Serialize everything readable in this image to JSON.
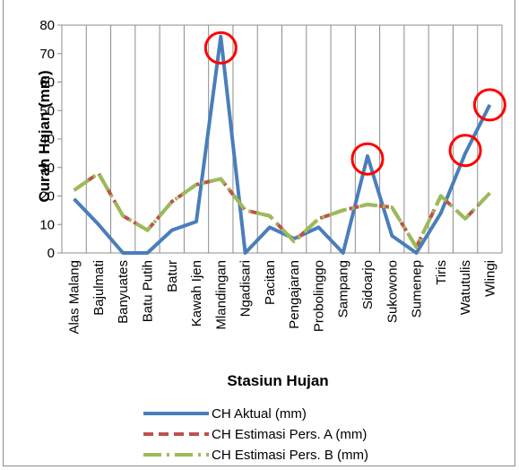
{
  "chart_data": {
    "type": "line",
    "title": "",
    "xlabel": "Stasiun Hujan",
    "ylabel": "Curah Hujan (mm)",
    "ylim": [
      0,
      80
    ],
    "yticks": [
      0,
      10,
      20,
      30,
      40,
      50,
      60,
      70,
      80
    ],
    "grid": "vertical",
    "legend_position": "bottom",
    "categories": [
      "Alas Malang",
      "Bajulmati",
      "Banyuates",
      "Batu Putih",
      "Batur",
      "Kawah Ijen",
      "Mlandingan",
      "Ngadisari",
      "Pacitan",
      "Pengajaran",
      "Probolinggo",
      "Sampang",
      "Sidoarjo",
      "Sukowono",
      "Sumenep",
      "Tiris",
      "Watutulis",
      "Wlingi"
    ],
    "series": [
      {
        "name": "CH Aktual (mm)",
        "color": "#4a7ebb",
        "dash": "solid",
        "values": [
          19,
          10,
          0,
          0,
          8,
          11,
          76,
          0,
          9,
          5,
          9,
          0,
          34,
          6,
          0,
          14,
          35,
          52
        ]
      },
      {
        "name": "CH Estimasi Pers. A (mm)",
        "color": "#c0504d",
        "dash": "dashed",
        "values": [
          22,
          28,
          13,
          8,
          18,
          24,
          26,
          15,
          13,
          4,
          12,
          15,
          17,
          16,
          2,
          20,
          12,
          21
        ]
      },
      {
        "name": "CH Estimasi Pers. B (mm)",
        "color": "#9bbb59",
        "dash": "dash-dot",
        "values": [
          22,
          28,
          13,
          8,
          18,
          24,
          26,
          15,
          13,
          4,
          12,
          15,
          17,
          16,
          2,
          20,
          12,
          21
        ]
      }
    ],
    "annotations": [
      {
        "shape": "circle",
        "color": "#ff0000",
        "category": "Mlandingan",
        "value": 72
      },
      {
        "shape": "circle",
        "color": "#ff0000",
        "category": "Sidoarjo",
        "value": 33
      },
      {
        "shape": "circle",
        "color": "#ff0000",
        "category": "Watutulis",
        "value": 36
      },
      {
        "shape": "circle",
        "color": "#ff0000",
        "category": "Wlingi",
        "value": 52
      }
    ]
  }
}
